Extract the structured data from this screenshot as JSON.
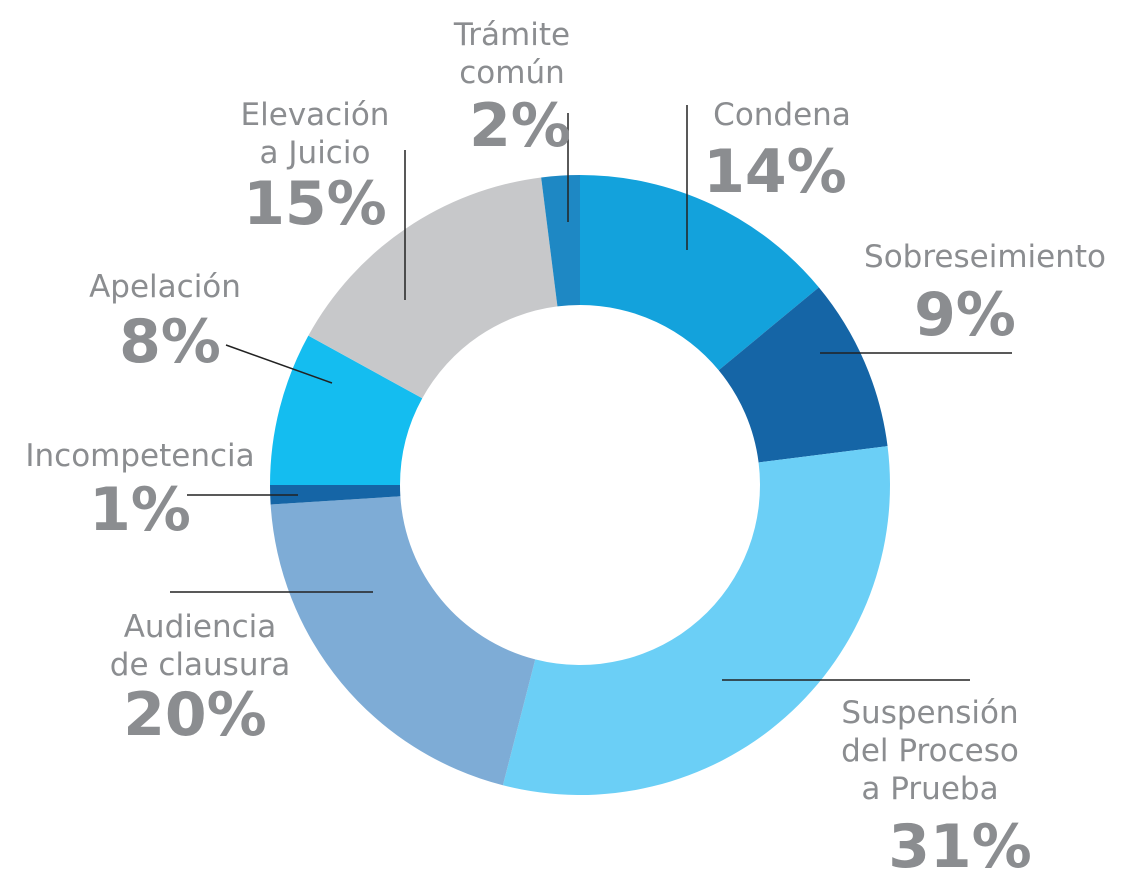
{
  "chart_data": {
    "type": "donut",
    "categories": [
      "Condena",
      "Sobreseimiento",
      "Suspensión\ndel Proceso\na Prueba",
      "Audiencia\nde clausura",
      "Incompetencia",
      "Apelación",
      "Elevación\na Juicio",
      "Trámite\ncomún"
    ],
    "values": [
      14,
      9,
      31,
      20,
      1,
      8,
      15,
      2
    ],
    "value_labels": [
      "14%",
      "9%",
      "31%",
      "20%",
      "1%",
      "8%",
      "15%",
      "2%"
    ],
    "colors": [
      "#13a2dc",
      "#1565a6",
      "#6bcff6",
      "#7eacd6",
      "#1565a6",
      "#14bdf0",
      "#c7c8ca",
      "#1e88c4"
    ]
  }
}
